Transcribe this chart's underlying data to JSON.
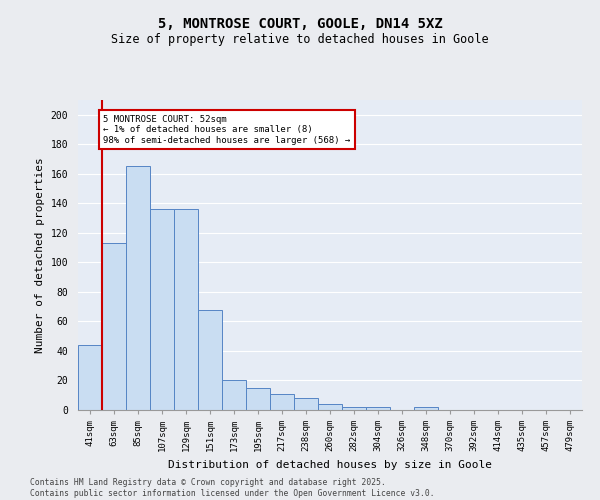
{
  "title": "5, MONTROSE COURT, GOOLE, DN14 5XZ",
  "subtitle": "Size of property relative to detached houses in Goole",
  "xlabel": "Distribution of detached houses by size in Goole",
  "ylabel": "Number of detached properties",
  "categories": [
    "41sqm",
    "63sqm",
    "85sqm",
    "107sqm",
    "129sqm",
    "151sqm",
    "173sqm",
    "195sqm",
    "217sqm",
    "238sqm",
    "260sqm",
    "282sqm",
    "304sqm",
    "326sqm",
    "348sqm",
    "370sqm",
    "392sqm",
    "414sqm",
    "435sqm",
    "457sqm",
    "479sqm"
  ],
  "values": [
    44,
    113,
    165,
    136,
    136,
    68,
    20,
    15,
    11,
    8,
    4,
    2,
    2,
    0,
    2,
    0,
    0,
    0,
    0,
    0,
    0
  ],
  "bar_color": "#c9ddf2",
  "bar_edge_color": "#5585c5",
  "bg_color": "#e6ecf5",
  "grid_color": "#ffffff",
  "annotation_text": "5 MONTROSE COURT: 52sqm\n← 1% of detached houses are smaller (8)\n98% of semi-detached houses are larger (568) →",
  "annotation_box_color": "#ffffff",
  "annotation_box_edge": "#cc0000",
  "ylim": [
    0,
    210
  ],
  "yticks": [
    0,
    20,
    40,
    60,
    80,
    100,
    120,
    140,
    160,
    180,
    200
  ],
  "footer": "Contains HM Land Registry data © Crown copyright and database right 2025.\nContains public sector information licensed under the Open Government Licence v3.0.",
  "title_fontsize": 10,
  "subtitle_fontsize": 8.5,
  "tick_fontsize": 6.5,
  "label_fontsize": 8
}
